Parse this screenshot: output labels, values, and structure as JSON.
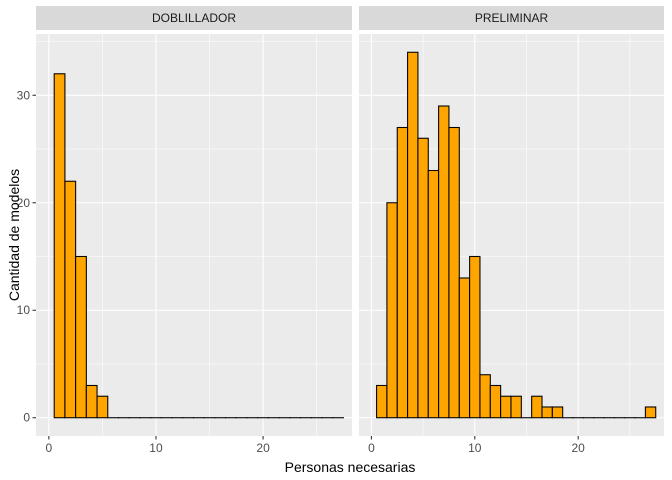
{
  "chart_data": {
    "type": "bar",
    "xlabel": "Personas necesarias",
    "ylabel": "Cantidad de modelos",
    "xlim": [
      -1.2,
      28.3
    ],
    "ylim": [
      -1.7,
      35.7
    ],
    "x_ticks": [
      0,
      10,
      20
    ],
    "y_ticks": [
      0,
      10,
      20,
      30
    ],
    "grid": true,
    "bin_width": 1,
    "bar_fill": "#FFA500",
    "bar_stroke": "#000000",
    "panel_background": "#EBEBEB",
    "strip_background": "#D9D9D9",
    "panels": [
      {
        "name": "DOBLILLADOR",
        "bins": [
          {
            "x": 1,
            "count": 32
          },
          {
            "x": 2,
            "count": 22
          },
          {
            "x": 3,
            "count": 15
          },
          {
            "x": 4,
            "count": 3
          },
          {
            "x": 5,
            "count": 2
          },
          {
            "x": 6,
            "count": 0
          },
          {
            "x": 7,
            "count": 0
          },
          {
            "x": 8,
            "count": 0
          },
          {
            "x": 9,
            "count": 0
          },
          {
            "x": 10,
            "count": 0
          },
          {
            "x": 11,
            "count": 0
          },
          {
            "x": 12,
            "count": 0
          },
          {
            "x": 13,
            "count": 0
          },
          {
            "x": 14,
            "count": 0
          },
          {
            "x": 15,
            "count": 0
          },
          {
            "x": 16,
            "count": 0
          },
          {
            "x": 17,
            "count": 0
          },
          {
            "x": 18,
            "count": 0
          },
          {
            "x": 19,
            "count": 0
          },
          {
            "x": 20,
            "count": 0
          },
          {
            "x": 21,
            "count": 0
          },
          {
            "x": 22,
            "count": 0
          },
          {
            "x": 23,
            "count": 0
          },
          {
            "x": 24,
            "count": 0
          },
          {
            "x": 25,
            "count": 0
          },
          {
            "x": 26,
            "count": 0
          },
          {
            "x": 27,
            "count": 0
          }
        ]
      },
      {
        "name": "PRELIMINAR",
        "bins": [
          {
            "x": 1,
            "count": 3
          },
          {
            "x": 2,
            "count": 20
          },
          {
            "x": 3,
            "count": 27
          },
          {
            "x": 4,
            "count": 34
          },
          {
            "x": 5,
            "count": 26
          },
          {
            "x": 6,
            "count": 23
          },
          {
            "x": 7,
            "count": 29
          },
          {
            "x": 8,
            "count": 27
          },
          {
            "x": 9,
            "count": 13
          },
          {
            "x": 10,
            "count": 15
          },
          {
            "x": 11,
            "count": 4
          },
          {
            "x": 12,
            "count": 3
          },
          {
            "x": 13,
            "count": 2
          },
          {
            "x": 14,
            "count": 2
          },
          {
            "x": 15,
            "count": 0
          },
          {
            "x": 16,
            "count": 2
          },
          {
            "x": 17,
            "count": 1
          },
          {
            "x": 18,
            "count": 1
          },
          {
            "x": 19,
            "count": 0
          },
          {
            "x": 20,
            "count": 0
          },
          {
            "x": 21,
            "count": 0
          },
          {
            "x": 22,
            "count": 0
          },
          {
            "x": 23,
            "count": 0
          },
          {
            "x": 24,
            "count": 0
          },
          {
            "x": 25,
            "count": 0
          },
          {
            "x": 26,
            "count": 0
          },
          {
            "x": 27,
            "count": 1
          }
        ]
      }
    ]
  }
}
